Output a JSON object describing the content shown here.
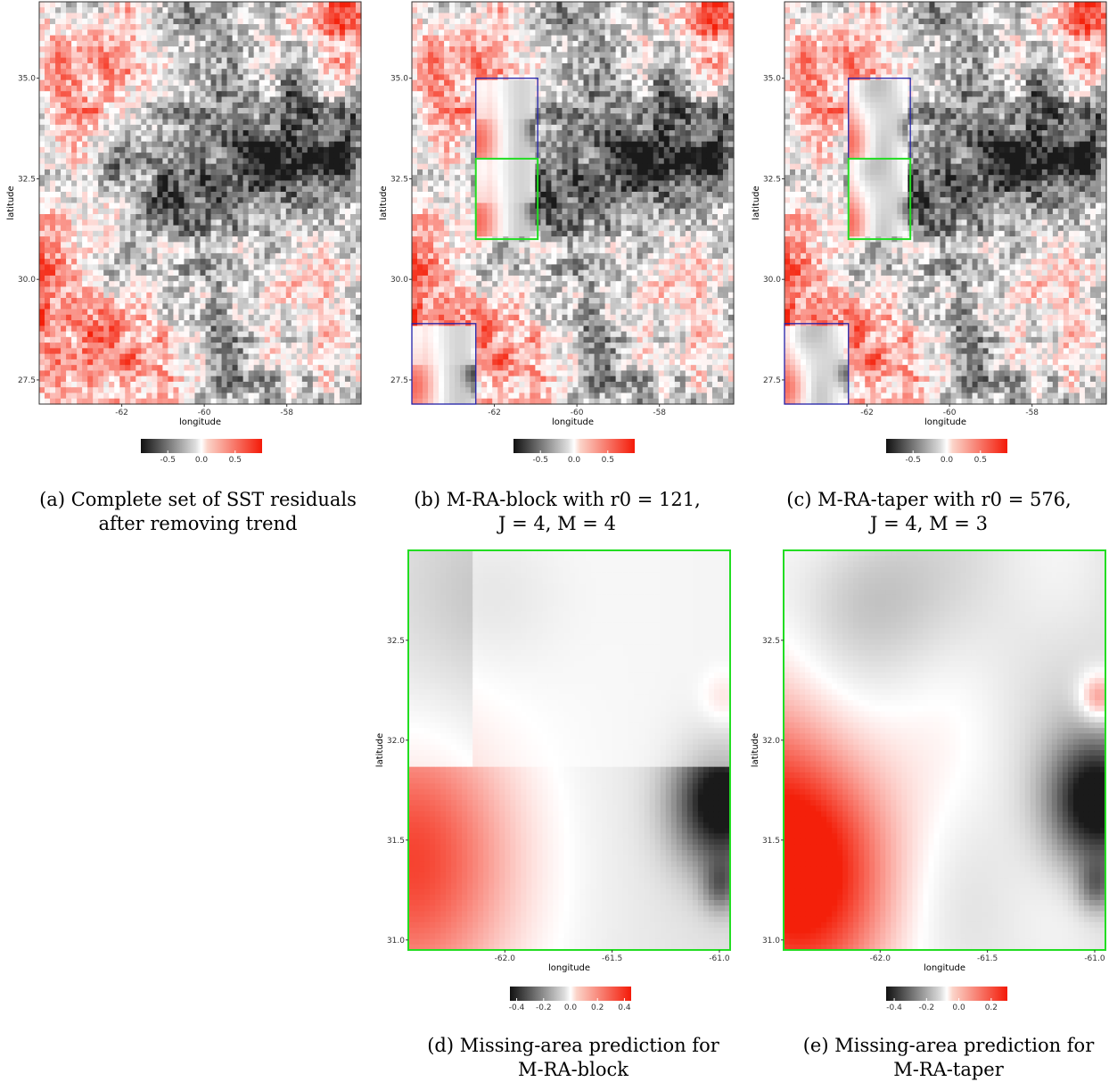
{
  "colors": {
    "negative": "#1a1a1a",
    "zero": "#ffffff",
    "positive": "#f4200a",
    "green_box": "#22dd22",
    "blue_box": "#2222aa"
  },
  "chart_data": [
    {
      "id": "a",
      "type": "heatmap",
      "caption": [
        "(a) Complete set of SST residuals",
        "after removing trend"
      ],
      "xlabel": "longitude",
      "ylabel": "latitude",
      "xlim": [
        -64,
        -56.2
      ],
      "ylim": [
        26.9,
        36.9
      ],
      "xticks": [
        -62,
        -60,
        -58
      ],
      "yticks": [
        "27.5",
        "30.0",
        "32.5",
        "35.0"
      ],
      "colorbar": {
        "range": [
          -0.9,
          0.9
        ],
        "ticks": [
          "-0.5",
          "0.0",
          "0.5"
        ]
      }
    },
    {
      "id": "b",
      "type": "heatmap",
      "caption": [
        "(b) M-RA-block with r0 = 121,",
        "J = 4, M = 4"
      ],
      "xlabel": "longitude",
      "ylabel": "latitude",
      "xlim": [
        -64,
        -56.2
      ],
      "ylim": [
        26.9,
        36.9
      ],
      "xticks": [
        -62,
        -60,
        -58
      ],
      "yticks": [
        "27.5",
        "30.0",
        "32.5",
        "35.0"
      ],
      "missing_boxes": [
        {
          "x": [
            -62.45,
            -60.95
          ],
          "y": [
            33.0,
            35.0
          ],
          "color": "blue"
        },
        {
          "x": [
            -64.0,
            -62.45
          ],
          "y": [
            26.9,
            28.9
          ],
          "color": "blue"
        },
        {
          "x": [
            -62.45,
            -60.95
          ],
          "y": [
            31.0,
            33.0
          ],
          "color": "green"
        }
      ],
      "colorbar": {
        "range": [
          -0.9,
          0.9
        ],
        "ticks": [
          "-0.5",
          "0.0",
          "0.5"
        ]
      }
    },
    {
      "id": "c",
      "type": "heatmap",
      "caption": [
        "(c) M-RA-taper with r0 = 576,",
        "J = 4, M = 3"
      ],
      "xlabel": "longitude",
      "ylabel": "latitude",
      "xlim": [
        -64,
        -56.2
      ],
      "ylim": [
        26.9,
        36.9
      ],
      "xticks": [
        -62,
        -60,
        -58
      ],
      "yticks": [
        "27.5",
        "30.0",
        "32.5",
        "35.0"
      ],
      "missing_boxes": [
        {
          "x": [
            -62.45,
            -60.95
          ],
          "y": [
            33.0,
            35.0
          ],
          "color": "blue"
        },
        {
          "x": [
            -64.0,
            -62.45
          ],
          "y": [
            26.9,
            28.9
          ],
          "color": "blue"
        },
        {
          "x": [
            -62.45,
            -60.95
          ],
          "y": [
            31.0,
            33.0
          ],
          "color": "green"
        }
      ],
      "colorbar": {
        "range": [
          -0.9,
          0.9
        ],
        "ticks": [
          "-0.5",
          "0.0",
          "0.5"
        ]
      }
    },
    {
      "id": "d",
      "type": "heatmap",
      "caption": [
        "(d) Missing-area prediction for",
        "M-RA-block"
      ],
      "xlabel": "longitude",
      "ylabel": "latitude",
      "xlim": [
        -62.45,
        -60.95
      ],
      "ylim": [
        30.95,
        32.95
      ],
      "xticks": [
        "-62.0",
        "-61.5",
        "-61.0"
      ],
      "yticks": [
        "31.0",
        "31.5",
        "32.0",
        "32.5"
      ],
      "colorbar": {
        "range": [
          -0.45,
          0.45
        ],
        "ticks": [
          "-0.4",
          "-0.2",
          "0.0",
          "0.2",
          "0.4"
        ]
      }
    },
    {
      "id": "e",
      "type": "heatmap",
      "caption": [
        "(e) Missing-area prediction for",
        "M-RA-taper"
      ],
      "xlabel": "longitude",
      "ylabel": "latitude",
      "xlim": [
        -62.45,
        -60.95
      ],
      "ylim": [
        30.95,
        32.95
      ],
      "xticks": [
        "-62.0",
        "-61.5",
        "-61.0"
      ],
      "yticks": [
        "31.0",
        "31.5",
        "32.0",
        "32.5"
      ],
      "colorbar": {
        "range": [
          -0.45,
          0.3
        ],
        "ticks": [
          "-0.4",
          "-0.2",
          "0.0",
          "0.2"
        ]
      }
    }
  ]
}
